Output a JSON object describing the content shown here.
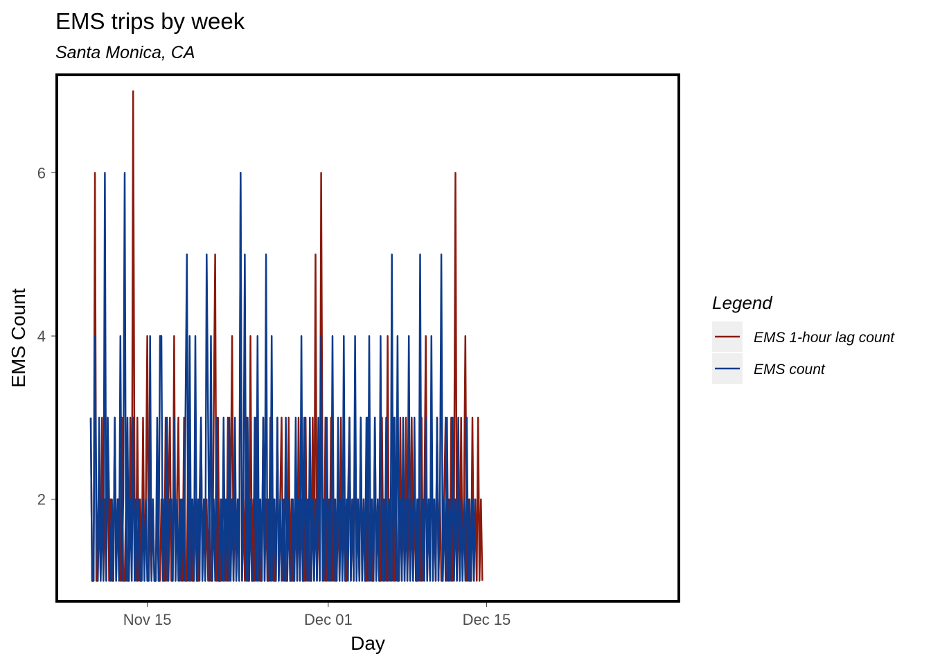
{
  "chart_data": {
    "type": "line",
    "title": "EMS trips by week",
    "subtitle": "Santa Monica, CA",
    "xlabel": "Day",
    "ylabel": "EMS Count",
    "x_ticks": [
      {
        "label": "Nov 15",
        "date": "2015-11-15"
      },
      {
        "label": "Dec 01",
        "date": "2015-12-01"
      },
      {
        "label": "Dec 15",
        "date": "2015-12-15"
      }
    ],
    "y_ticks": [
      2,
      4,
      6
    ],
    "xlim": [
      "2015-11-07",
      "2016-01-01"
    ],
    "ylim": [
      0.75,
      7.2
    ],
    "grid": false,
    "panel_border": true,
    "legend": {
      "title": "Legend",
      "placement": "right"
    },
    "series": [
      {
        "name": "EMS 1-hour lag count",
        "color": "#8b1a0e",
        "start": "2015-11-10",
        "step_hours": 3,
        "values": [
          3,
          1,
          1,
          6,
          1,
          1,
          2,
          1,
          3,
          1,
          2,
          1,
          3,
          1,
          2,
          1,
          1,
          3,
          1,
          2,
          2,
          1,
          3,
          1,
          1,
          2,
          1,
          1,
          3,
          1,
          7,
          2,
          1,
          3,
          1,
          2,
          1,
          3,
          1,
          2,
          4,
          1,
          2,
          1,
          2,
          1,
          1,
          2,
          1,
          1,
          2,
          1,
          1,
          3,
          1,
          2,
          3,
          1,
          1,
          4,
          1,
          2,
          3,
          1,
          2,
          1,
          3,
          1,
          1,
          3,
          1,
          2,
          1,
          1,
          2,
          1,
          1,
          2,
          3,
          1,
          2,
          1,
          2,
          1,
          2,
          1,
          1,
          3,
          5,
          1,
          3,
          1,
          1,
          2,
          1,
          2,
          1,
          3,
          1,
          2,
          4,
          1,
          2,
          1,
          2,
          1,
          6,
          1,
          2,
          1,
          3,
          1,
          1,
          4,
          1,
          2,
          1,
          3,
          1,
          2,
          1,
          1,
          3,
          1,
          2,
          1,
          1,
          3,
          1,
          2,
          1,
          1,
          3,
          1,
          2,
          3,
          1,
          2,
          1,
          1,
          3,
          1,
          2,
          1,
          1,
          2,
          1,
          3,
          1,
          2,
          1,
          1,
          3,
          1,
          2,
          1,
          1,
          3,
          1,
          5,
          1,
          2,
          1,
          6,
          2,
          1,
          3,
          1,
          2,
          1,
          3,
          1,
          2,
          1,
          1,
          2,
          1,
          3,
          1,
          2,
          1,
          1,
          2,
          3,
          1,
          2,
          1,
          3,
          1,
          2,
          1,
          3,
          1,
          2,
          1,
          1,
          3,
          1,
          2,
          1,
          1,
          3,
          1,
          2,
          1,
          1,
          3,
          1,
          2,
          1,
          4,
          1,
          2,
          1,
          3,
          1,
          2,
          1,
          1,
          3,
          1,
          2,
          1,
          3,
          1,
          2,
          1,
          3,
          1,
          2,
          1,
          1,
          2,
          1,
          3,
          1,
          2,
          4,
          1,
          2,
          1,
          3,
          1,
          2,
          1,
          3,
          1,
          2,
          1,
          1,
          2,
          3,
          1,
          2,
          1,
          3,
          1,
          2,
          6,
          1,
          2,
          1,
          3,
          1,
          2,
          4,
          1,
          2,
          1,
          1,
          3,
          1,
          2,
          1,
          3,
          1,
          2,
          1
        ]
      },
      {
        "name": "EMS count",
        "color": "#0d3b8c",
        "start": "2015-11-10",
        "step_hours": 3,
        "values": [
          3,
          1,
          1,
          4,
          2,
          1,
          3,
          1,
          2,
          1,
          6,
          1,
          3,
          2,
          1,
          2,
          1,
          3,
          1,
          2,
          1,
          4,
          1,
          2,
          6,
          1,
          3,
          1,
          2,
          1,
          3,
          1,
          2,
          1,
          2,
          1,
          1,
          2,
          1,
          2,
          1,
          1,
          4,
          1,
          2,
          1,
          1,
          3,
          1,
          4,
          4,
          1,
          2,
          1,
          3,
          1,
          2,
          2,
          1,
          3,
          1,
          2,
          1,
          2,
          1,
          2,
          1,
          3,
          5,
          1,
          4,
          1,
          2,
          1,
          4,
          1,
          2,
          1,
          3,
          1,
          2,
          1,
          5,
          3,
          1,
          4,
          1,
          2,
          1,
          3,
          1,
          1,
          2,
          1,
          3,
          1,
          2,
          1,
          3,
          1,
          2,
          1,
          3,
          1,
          2,
          1,
          6,
          1,
          2,
          5,
          1,
          3,
          1,
          2,
          1,
          1,
          3,
          1,
          4,
          1,
          2,
          1,
          3,
          1,
          5,
          1,
          2,
          1,
          4,
          1,
          2,
          1,
          3,
          1,
          2,
          1,
          2,
          1,
          3,
          1,
          2,
          1,
          1,
          2,
          1,
          3,
          1,
          2,
          1,
          4,
          1,
          3,
          1,
          2,
          1,
          3,
          1,
          2,
          1,
          2,
          1,
          3,
          1,
          4,
          1,
          2,
          1,
          3,
          1,
          2,
          1,
          4,
          1,
          2,
          1,
          3,
          1,
          2,
          1,
          4,
          1,
          2,
          1,
          3,
          1,
          2,
          1,
          4,
          1,
          2,
          1,
          3,
          1,
          2,
          1,
          3,
          1,
          4,
          1,
          2,
          1,
          3,
          1,
          2,
          1,
          4,
          1,
          2,
          1,
          3,
          1,
          2,
          1,
          5,
          1,
          3,
          1,
          4,
          1,
          2,
          1,
          3,
          1,
          2,
          1,
          4,
          1,
          2,
          1,
          3,
          1,
          2,
          1,
          5,
          1,
          2,
          1,
          3,
          1,
          2,
          1,
          4,
          1,
          2,
          1,
          3,
          1,
          2,
          5,
          1,
          2,
          1,
          3,
          1,
          2,
          1,
          3,
          1,
          2,
          1,
          3,
          1,
          2,
          1,
          2,
          1,
          3,
          1,
          2,
          1,
          2,
          1,
          2
        ]
      }
    ]
  }
}
